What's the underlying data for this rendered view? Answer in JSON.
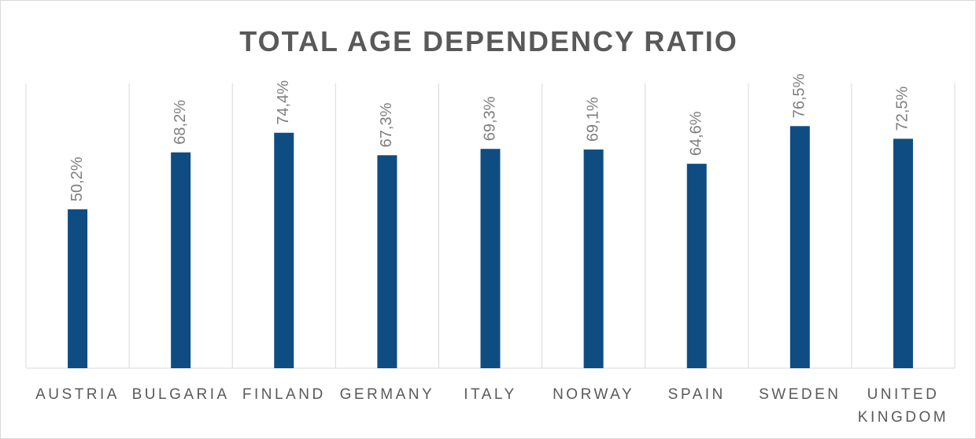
{
  "chart_data": {
    "type": "bar",
    "title": "TOTAL AGE DEPENDENCY RATIO",
    "categories": [
      "AUSTRIA",
      "BULGARIA",
      "FINLAND",
      "GERMANY",
      "ITALY",
      "NORWAY",
      "SPAIN",
      "SWEDEN",
      "UNITED KINGDOM"
    ],
    "values": [
      50.2,
      68.2,
      74.4,
      67.3,
      69.3,
      69.1,
      64.6,
      76.5,
      72.5
    ],
    "value_labels": [
      "50,2%",
      "68,2%",
      "74,4%",
      "67,3%",
      "69,3%",
      "69,1%",
      "64,6%",
      "76,5%",
      "72,5%"
    ],
    "color": "#0f4c81",
    "ylim": [
      0,
      90
    ]
  }
}
